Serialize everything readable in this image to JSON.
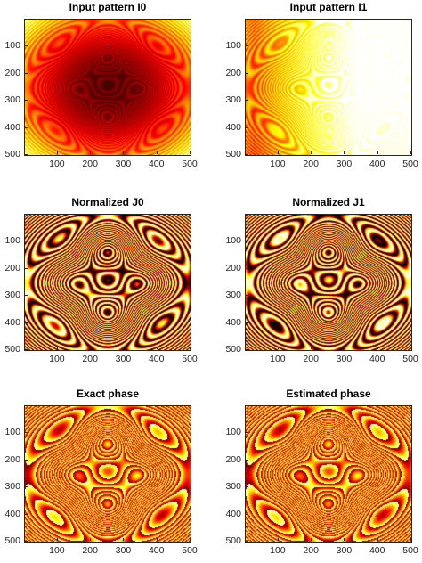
{
  "colormap": "hot",
  "colors": {
    "background": "#ffffff",
    "axis": "#262626"
  },
  "chart_data": [
    {
      "type": "heatmap",
      "title": "Input pattern I0",
      "xlim": [
        1,
        500
      ],
      "ylim": [
        1,
        500
      ],
      "y_reversed": true,
      "xticks": [
        "100",
        "200",
        "300",
        "400",
        "500"
      ],
      "yticks": [
        "100",
        "200",
        "300",
        "400",
        "500"
      ]
    },
    {
      "type": "heatmap",
      "title": "Input pattern I1",
      "xlim": [
        1,
        500
      ],
      "ylim": [
        1,
        500
      ],
      "y_reversed": true,
      "xticks": [
        "100",
        "200",
        "300",
        "400",
        "500"
      ],
      "yticks": [
        "100",
        "200",
        "300",
        "400",
        "500"
      ]
    },
    {
      "type": "heatmap",
      "title": "Normalized J0",
      "xlim": [
        1,
        500
      ],
      "ylim": [
        1,
        500
      ],
      "y_reversed": true,
      "xticks": [
        "100",
        "200",
        "300",
        "400",
        "500"
      ],
      "yticks": [
        "100",
        "200",
        "300",
        "400",
        "500"
      ]
    },
    {
      "type": "heatmap",
      "title": "Normalized J1",
      "xlim": [
        1,
        500
      ],
      "ylim": [
        1,
        500
      ],
      "y_reversed": true,
      "xticks": [
        "100",
        "200",
        "300",
        "400",
        "500"
      ],
      "yticks": [
        "100",
        "200",
        "300",
        "400",
        "500"
      ]
    },
    {
      "type": "heatmap",
      "title": "Exact phase",
      "xlim": [
        1,
        500
      ],
      "ylim": [
        1,
        500
      ],
      "y_reversed": true,
      "xticks": [
        "100",
        "200",
        "300",
        "400",
        "500"
      ],
      "yticks": [
        "100",
        "200",
        "300",
        "400",
        "500"
      ]
    },
    {
      "type": "heatmap",
      "title": "Estimated phase",
      "xlim": [
        1,
        500
      ],
      "ylim": [
        1,
        500
      ],
      "y_reversed": true,
      "xticks": [
        "100",
        "200",
        "300",
        "400",
        "500"
      ],
      "yticks": [
        "100",
        "200",
        "300",
        "400",
        "500"
      ]
    }
  ]
}
